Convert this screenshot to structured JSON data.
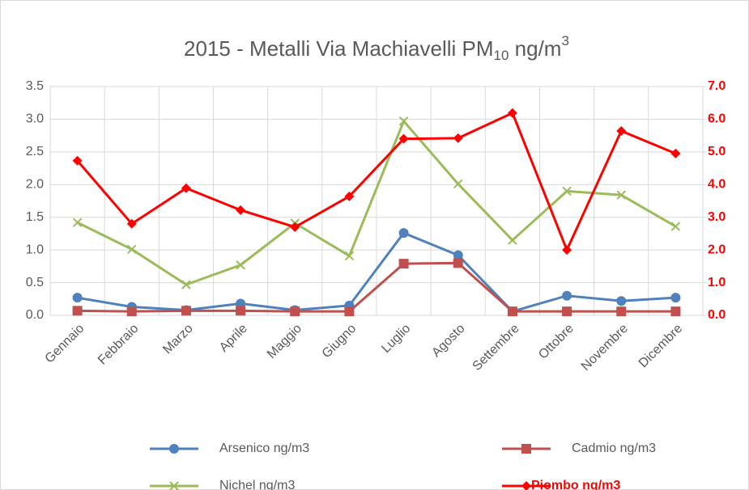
{
  "chart_data": {
    "type": "line",
    "title": [
      "2015 - Metalli Via Machiavelli PM",
      "10",
      " ng/m",
      "3"
    ],
    "categories": [
      "Gennaio",
      "Febbraio",
      "Marzo",
      "Aprile",
      "Maggio",
      "Giugno",
      "Luglio",
      "Agosto",
      "Settembre",
      "Ottobre",
      "Novembre",
      "Dicembre"
    ],
    "series": [
      {
        "name": "Arsenico  ng/m3",
        "color": "#4f81bd",
        "marker": "circle",
        "values": [
          0.27,
          0.13,
          0.08,
          0.18,
          0.08,
          0.15,
          1.26,
          0.92,
          0.06,
          0.3,
          0.22,
          0.27
        ]
      },
      {
        "name": "Cadmio  ng/m3",
        "color": "#c0504d",
        "marker": "square",
        "values": [
          0.07,
          0.06,
          0.07,
          0.07,
          0.06,
          0.06,
          0.79,
          0.8,
          0.06,
          0.06,
          0.06,
          0.06
        ]
      },
      {
        "name": "Nichel  ng/m3",
        "color": "#9bbb59",
        "marker": "x",
        "values": [
          1.42,
          1.01,
          0.47,
          0.77,
          1.41,
          0.91,
          2.97,
          2.01,
          1.15,
          1.9,
          1.84,
          1.36
        ]
      },
      {
        "name": "Piombo  ng/m3",
        "color": "#ff0000",
        "marker": "diamond",
        "axis": "y2",
        "bold": true,
        "values": [
          4.73,
          2.8,
          3.89,
          3.22,
          2.7,
          3.64,
          5.4,
          5.42,
          6.19,
          2.0,
          5.64,
          4.95
        ]
      }
    ],
    "ylim": [
      0,
      3.5
    ],
    "yticks": [
      {
        "value": 0,
        "label": "0.0"
      },
      0.5,
      {
        "value": 1,
        "label": "1.0"
      },
      1.5,
      {
        "value": 2,
        "label": "2.0"
      },
      2.5,
      {
        "value": 3,
        "label": "3.0"
      },
      3.5
    ],
    "y2lim": [
      0,
      7
    ],
    "y2ticks": [
      {
        "value": 0,
        "label": "0.0"
      },
      {
        "value": 1,
        "label": "1.0"
      },
      {
        "value": 2,
        "label": "2.0"
      },
      {
        "value": 3,
        "label": "3.0"
      },
      {
        "value": 4,
        "label": "4.0"
      },
      {
        "value": 5,
        "label": "5.0"
      },
      {
        "value": 6,
        "label": "6.0"
      },
      {
        "value": 7,
        "label": "7.0"
      }
    ],
    "y2color": "#ff0000",
    "grid": true
  }
}
